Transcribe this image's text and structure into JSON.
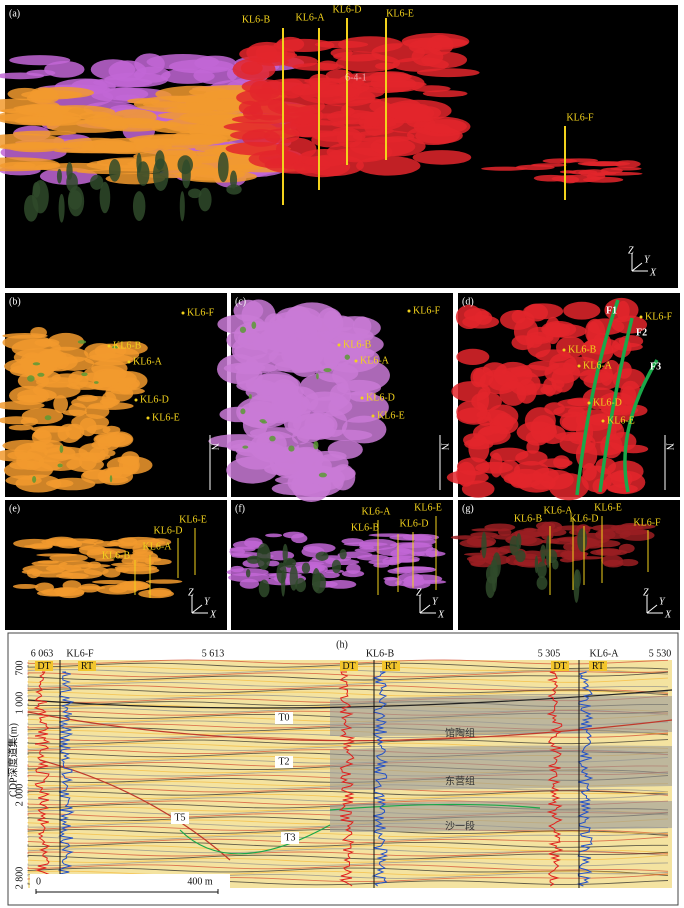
{
  "panels": [
    {
      "label": "(a)",
      "wells": [
        "KL6-B",
        "KL6-A",
        "KL6-D",
        "KL6-E",
        "KL6-F"
      ],
      "notes": [
        "6-4-1"
      ],
      "axes": [
        "Z",
        "Y",
        "X"
      ]
    },
    {
      "label": "(b)",
      "wells": [
        "KL6-F",
        "KL6-B",
        "KL6-A",
        "KL6-D",
        "KL6-E"
      ],
      "axes": [
        "N"
      ]
    },
    {
      "label": "(c)",
      "wells": [
        "KL6-F",
        "KL6-B",
        "KL6-A",
        "KL6-D",
        "KL6-E"
      ],
      "axes": [
        "N"
      ]
    },
    {
      "label": "(d)",
      "wells": [
        "KL6-B",
        "KL6-A",
        "KL6-D",
        "KL6-E",
        "KL6-F"
      ],
      "faults": [
        "F1",
        "F2",
        "F3"
      ],
      "axes": [
        "N"
      ]
    },
    {
      "label": "(e)",
      "wells": [
        "KL6-B",
        "KL6-A",
        "KL6-D",
        "KL6-E"
      ],
      "axes": [
        "Z",
        "Y",
        "X"
      ]
    },
    {
      "label": "(f)",
      "wells": [
        "KL6-A",
        "KL6-B",
        "KL6-D",
        "KL6-E"
      ],
      "axes": [
        "Z",
        "Y",
        "X"
      ]
    },
    {
      "label": "(g)",
      "wells": [
        "KL6-B",
        "KL6-A",
        "KL6-D",
        "KL6-E",
        "KL6-F"
      ],
      "axes": [
        "Z",
        "Y",
        "X"
      ]
    }
  ],
  "section": {
    "label": "(h)",
    "top_labels": [
      "6 063",
      "KL6-F",
      "5 613",
      "KL6-B",
      "5 305",
      "KL6-A",
      "5 530"
    ],
    "logs": [
      "DT",
      "RT",
      "DT",
      "RT",
      "DT",
      "RT"
    ],
    "y_axis_title": "CDP深度道集(m)",
    "y_ticks": [
      "700",
      "1 000",
      "2 000",
      "2 800"
    ],
    "horizons": [
      "T0",
      "T2",
      "T5",
      "T3"
    ],
    "formations": [
      "馆陶组",
      "东营组",
      "沙一段"
    ],
    "scale": [
      "0",
      "400 m"
    ]
  }
}
